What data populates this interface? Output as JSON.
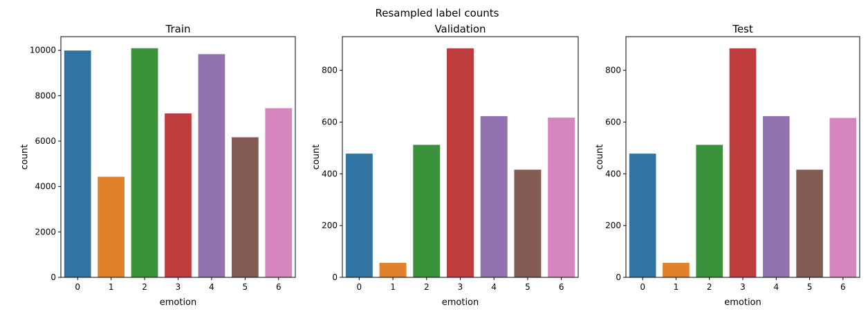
{
  "figure": {
    "suptitle": "Resampled label counts"
  },
  "palette": [
    "#3274a1",
    "#e1812c",
    "#3a923a",
    "#c03d3e",
    "#9372b2",
    "#845b53",
    "#d684bd"
  ],
  "chart_data": [
    {
      "type": "bar",
      "title": "Train",
      "xlabel": "emotion",
      "ylabel": "count",
      "categories": [
        "0",
        "1",
        "2",
        "3",
        "4",
        "5",
        "6"
      ],
      "values": [
        9990,
        4430,
        10090,
        7220,
        9830,
        6170,
        7450
      ],
      "ylim": [
        0,
        10600
      ],
      "yticks": [
        0,
        2000,
        4000,
        6000,
        8000,
        10000
      ],
      "grid": false
    },
    {
      "type": "bar",
      "title": "Validation",
      "xlabel": "emotion",
      "ylabel": "count",
      "categories": [
        "0",
        "1",
        "2",
        "3",
        "4",
        "5",
        "6"
      ],
      "values": [
        478,
        56,
        512,
        885,
        623,
        416,
        617
      ],
      "ylim": [
        0,
        930
      ],
      "yticks": [
        0,
        200,
        400,
        600,
        800
      ],
      "grid": false
    },
    {
      "type": "bar",
      "title": "Test",
      "xlabel": "emotion",
      "ylabel": "count",
      "categories": [
        "0",
        "1",
        "2",
        "3",
        "4",
        "5",
        "6"
      ],
      "values": [
        478,
        56,
        512,
        885,
        623,
        416,
        616
      ],
      "ylim": [
        0,
        930
      ],
      "yticks": [
        0,
        200,
        400,
        600,
        800
      ],
      "grid": false
    }
  ]
}
